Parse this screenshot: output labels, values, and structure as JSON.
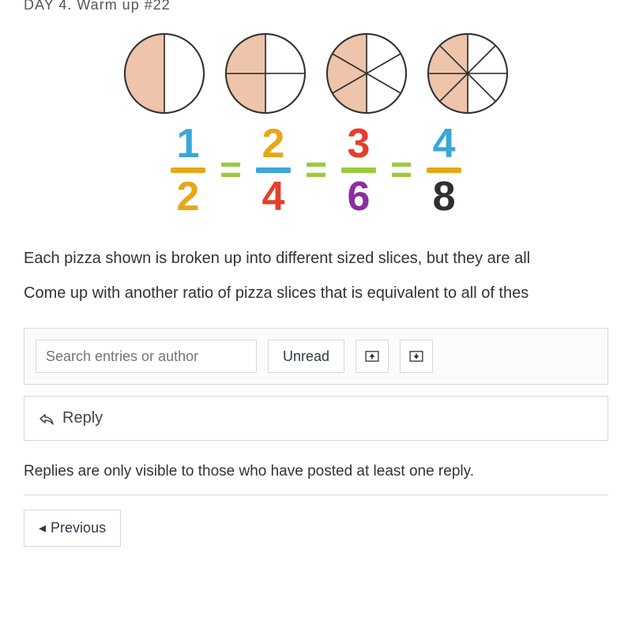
{
  "header_cut": "DAY 4. Warm up #22",
  "pizzas": {
    "fill_color": "#eec4aa",
    "stroke_color": "#333333",
    "bg_color": "#ffffff",
    "radius": 50,
    "items": [
      {
        "slices": 2,
        "shaded": [
          0
        ]
      },
      {
        "slices": 4,
        "shaded": [
          0,
          1
        ]
      },
      {
        "slices": 6,
        "shaded": [
          0,
          1,
          2
        ]
      },
      {
        "slices": 8,
        "shaded": [
          0,
          1,
          2,
          3
        ]
      }
    ]
  },
  "fractions": {
    "eq_color": "#9bca3e",
    "items": [
      {
        "num": "1",
        "den": "2",
        "num_color": "#3aa7d9",
        "den_color": "#e6a817",
        "bar_color": "#e6a817"
      },
      {
        "num": "2",
        "den": "4",
        "num_color": "#e6a817",
        "den_color": "#e63e2b",
        "bar_color": "#3aa7d9"
      },
      {
        "num": "3",
        "den": "6",
        "num_color": "#e63e2b",
        "den_color": "#8a2ea0",
        "bar_color": "#9bca3e"
      },
      {
        "num": "4",
        "den": "8",
        "num_color": "#3aa7d9",
        "den_color": "#2f2f2f",
        "bar_color": "#e6a817"
      }
    ]
  },
  "question_line1": "Each pizza shown is broken up into different sized slices, but they are all",
  "question_line2": "Come up with another ratio of pizza slices that is equivalent to all of thes",
  "search_placeholder": "Search entries or author",
  "unread_label": "Unread",
  "reply_label": "Reply",
  "visibility_note": "Replies are only visible to those who have posted at least one reply.",
  "previous_label": "Previous"
}
